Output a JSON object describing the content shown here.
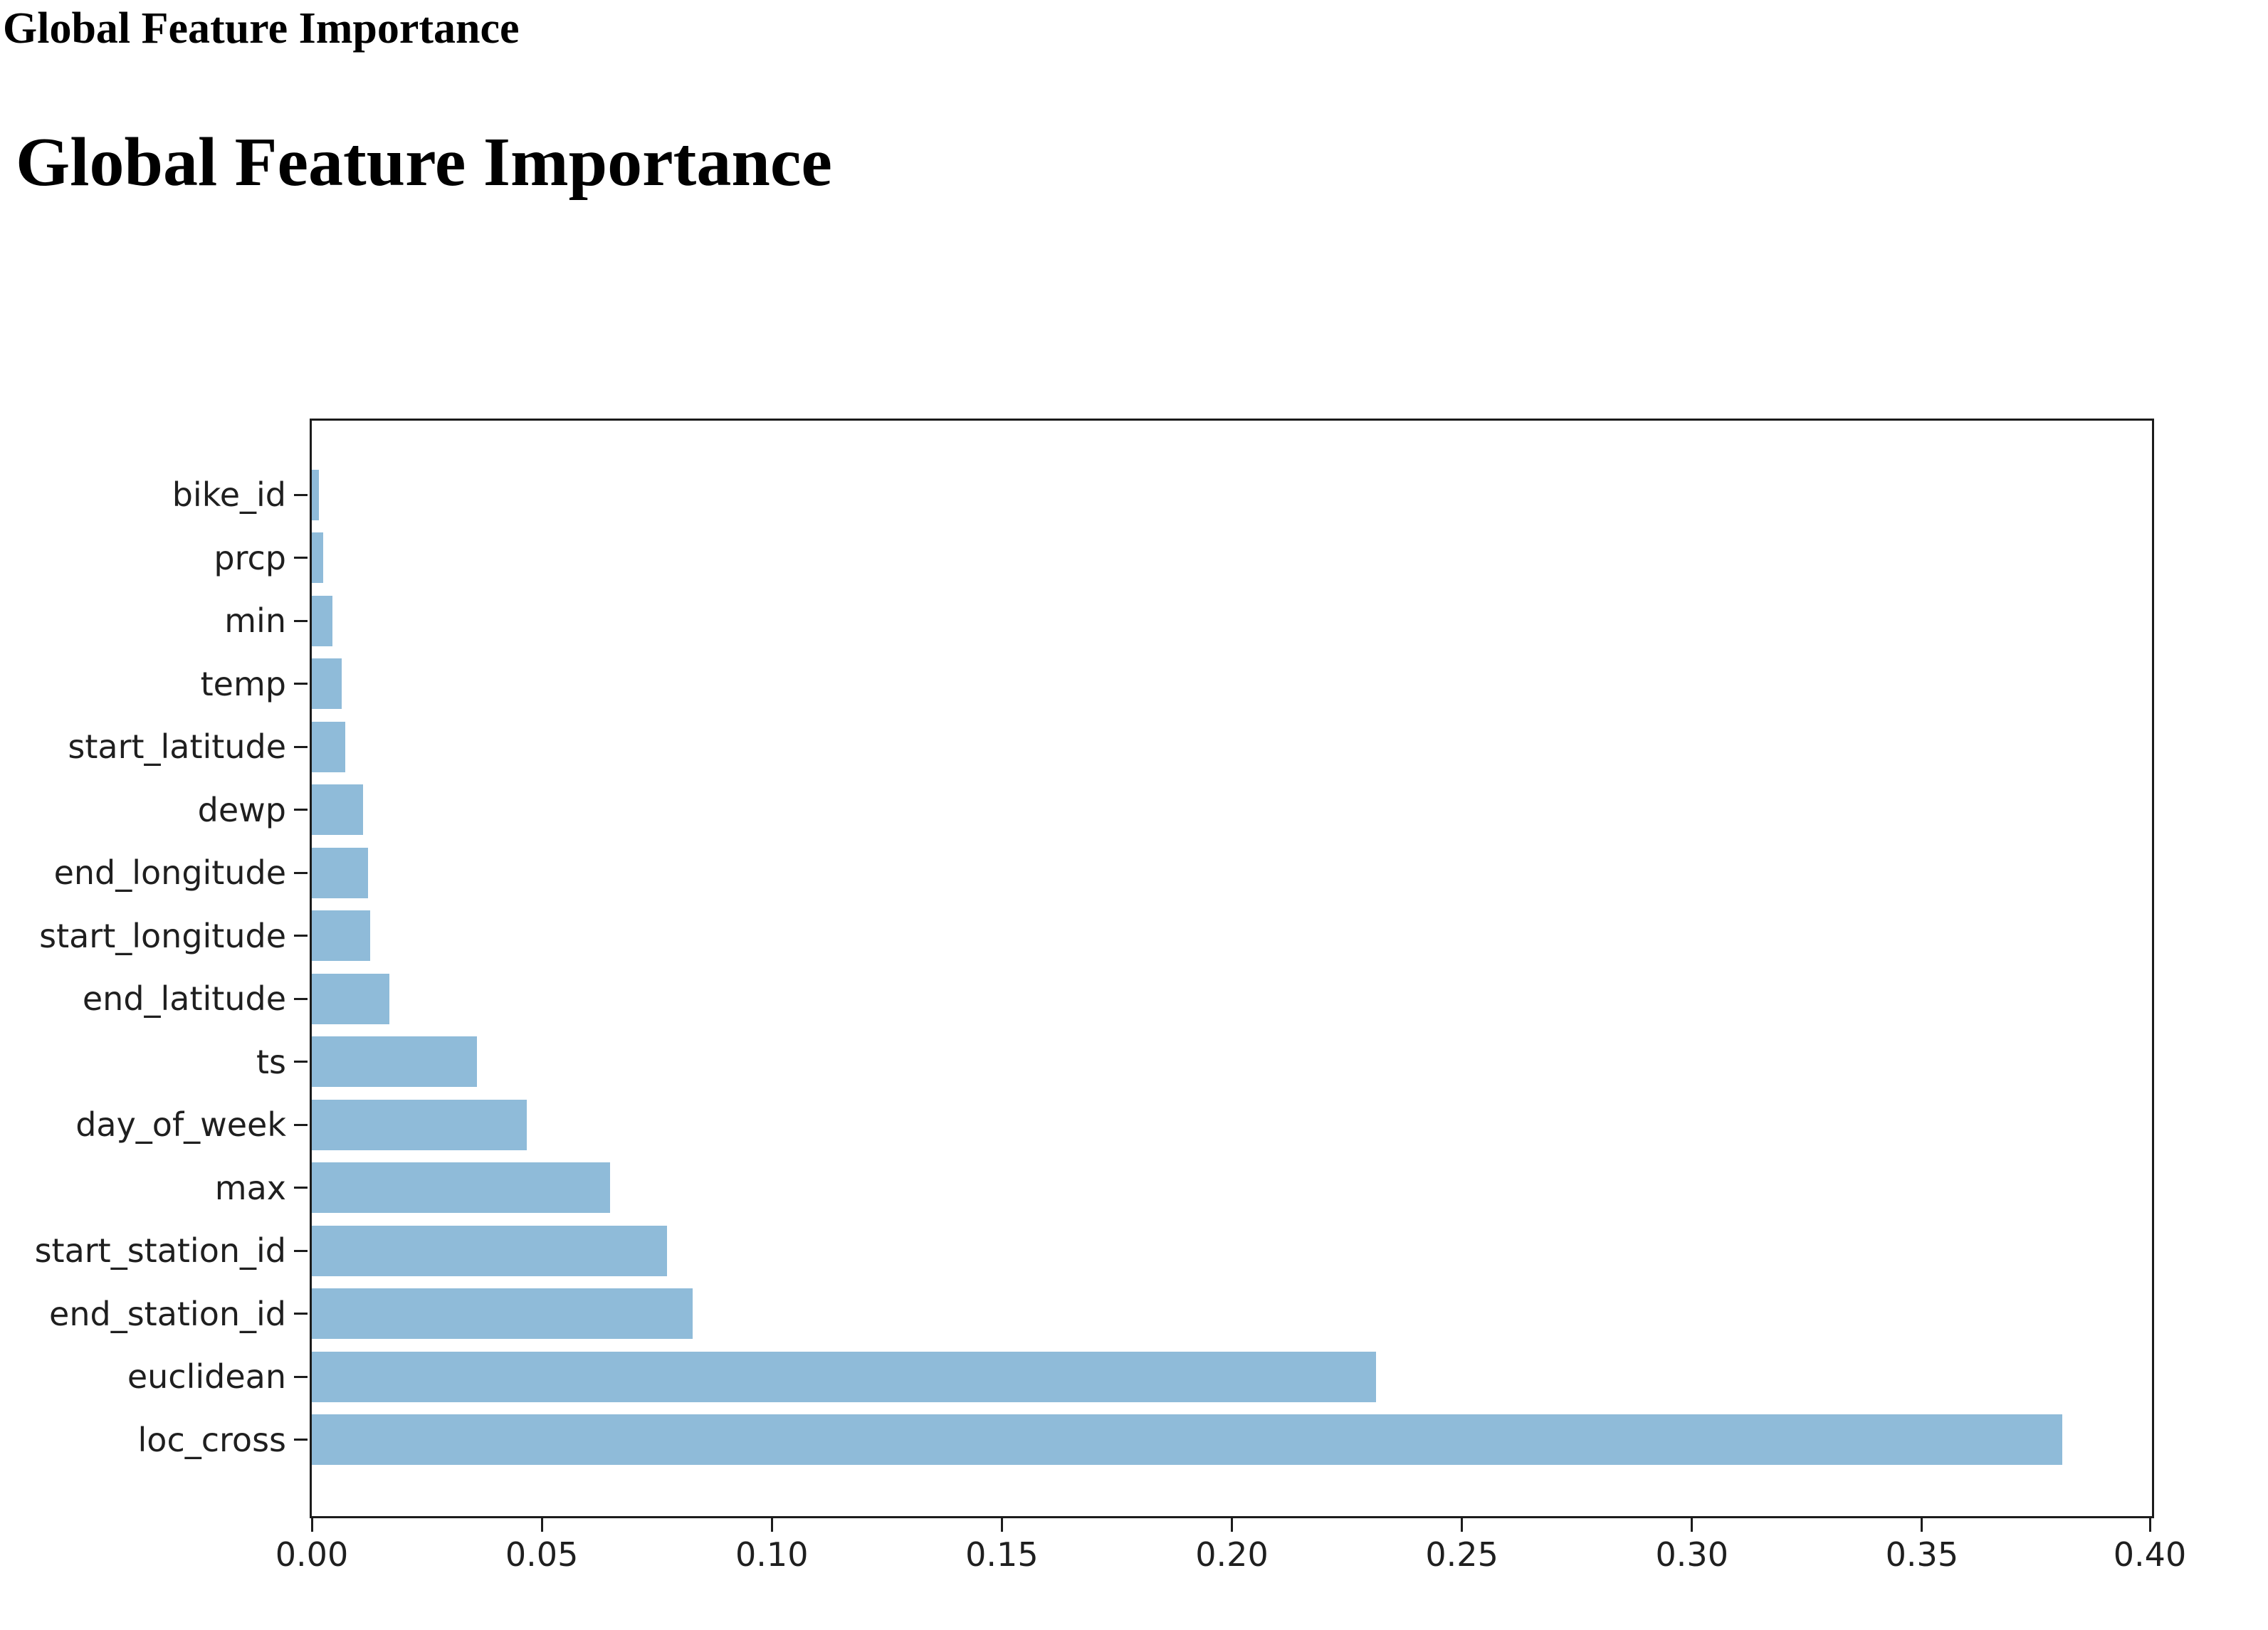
{
  "page": {
    "small_title": "Global Feature Importance",
    "big_title": "Global Feature Importance"
  },
  "chart_data": {
    "type": "bar",
    "orientation": "horizontal",
    "title": "Global Feature Importance",
    "categories": [
      "bike_id",
      "prcp",
      "min",
      "temp",
      "start_latitude",
      "dewp",
      "end_longitude",
      "start_longitude",
      "end_latitude",
      "ts",
      "day_of_week",
      "max",
      "start_station_id",
      "end_station_id",
      "euclidean",
      "loc_cross"
    ],
    "values": [
      0.0015,
      0.0025,
      0.0045,
      0.0065,
      0.0072,
      0.0112,
      0.0122,
      0.0127,
      0.0168,
      0.0359,
      0.0468,
      0.0648,
      0.0772,
      0.0828,
      0.2314,
      0.3805
    ],
    "xlabel": "",
    "ylabel": "",
    "xlim": [
      0,
      0.4
    ],
    "x_tick_labels": [
      "0.00",
      "0.05",
      "0.10",
      "0.15",
      "0.20",
      "0.25",
      "0.30",
      "0.35",
      "0.40"
    ],
    "x_tick_values": [
      0.0,
      0.05,
      0.1,
      0.15,
      0.2,
      0.25,
      0.3,
      0.35,
      0.4
    ],
    "bar_color": "#8FBBD9",
    "axis_color": "#1c1c1c",
    "grid": false,
    "legend": "none"
  }
}
